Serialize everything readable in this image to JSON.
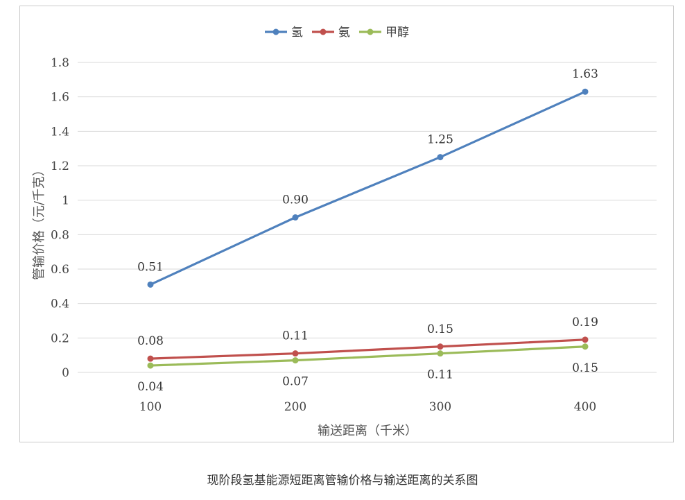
{
  "chart_data": {
    "type": "line",
    "categories": [
      "100",
      "200",
      "300",
      "400"
    ],
    "xlabel": "输送距离（千米）",
    "ylabel": "管输价格（元/千克）",
    "ylim": [
      0,
      1.8
    ],
    "yticks": [
      "0",
      "0.2",
      "0.4",
      "0.6",
      "0.8",
      "1",
      "1.2",
      "1.4",
      "1.6",
      "1.8"
    ],
    "grid": true,
    "legend_position": "top-center",
    "series": [
      {
        "name": "氢",
        "color": "#4f81bd",
        "values": [
          0.51,
          0.9,
          1.25,
          1.63
        ],
        "labels": [
          "0.51",
          "0.90",
          "1.25",
          "1.63"
        ]
      },
      {
        "name": "氨",
        "color": "#c0504d",
        "values": [
          0.08,
          0.11,
          0.15,
          0.19
        ],
        "labels": [
          "0.08",
          "0.11",
          "0.15",
          "0.19"
        ]
      },
      {
        "name": "甲醇",
        "color": "#9bbb59",
        "values": [
          0.04,
          0.07,
          0.11,
          0.15
        ],
        "labels": [
          "0.04",
          "0.07",
          "0.11",
          "0.15"
        ]
      }
    ]
  },
  "caption": "现阶段氢基能源短距离管输价格与输送距离的关系图"
}
